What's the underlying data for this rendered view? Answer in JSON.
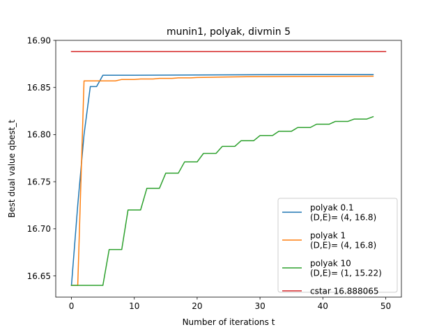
{
  "chart_data": {
    "type": "line",
    "title": "munin1, polyak, divmin 5",
    "xlabel": "Number of iterations t",
    "ylabel": "Best dual value qbest_t",
    "xlim": [
      -2.5,
      52.5
    ],
    "ylim": [
      16.6275,
      16.9
    ],
    "xticks": [
      0,
      10,
      20,
      30,
      40,
      50
    ],
    "xtick_labels": [
      "0",
      "10",
      "20",
      "30",
      "40",
      "50"
    ],
    "yticks": [
      16.65,
      16.7,
      16.75,
      16.8,
      16.85,
      16.9
    ],
    "ytick_labels": [
      "16.65",
      "16.70",
      "16.75",
      "16.80",
      "16.85",
      "16.90"
    ],
    "grid": false,
    "legend_position": "lower right",
    "series": [
      {
        "name": "polyak 0.1",
        "legend_lines": [
          "polyak 0.1",
          "(D,E)= (4, 16.8)"
        ],
        "color": "#1f77b4",
        "x": [
          0,
          1,
          2,
          3,
          4,
          5,
          10,
          20,
          30,
          40,
          48
        ],
        "y": [
          16.64,
          16.725,
          16.8,
          16.851,
          16.851,
          16.863,
          16.863,
          16.8633,
          16.8635,
          16.8636,
          16.8636
        ]
      },
      {
        "name": "polyak 1",
        "legend_lines": [
          "polyak 1",
          "(D,E)= (4, 16.8)"
        ],
        "color": "#ff7f0e",
        "x": [
          0,
          1,
          2,
          3,
          4,
          5,
          6,
          7,
          8,
          9,
          10,
          11,
          12,
          13,
          14,
          15,
          16,
          17,
          18,
          19,
          20,
          22,
          24,
          26,
          28,
          30,
          35,
          40,
          45,
          48
        ],
        "y": [
          16.64,
          16.64,
          16.857,
          16.857,
          16.857,
          16.857,
          16.857,
          16.857,
          16.8585,
          16.8585,
          16.8585,
          16.859,
          16.859,
          16.859,
          16.8597,
          16.8597,
          16.8597,
          16.8602,
          16.8602,
          16.8602,
          16.8606,
          16.8608,
          16.861,
          16.8612,
          16.8614,
          16.8615,
          16.8617,
          16.8618,
          16.8619,
          16.862
        ]
      },
      {
        "name": "polyak 10",
        "legend_lines": [
          "polyak 10",
          "(D,E)= (1, 15.22)"
        ],
        "color": "#2ca02c",
        "x": [
          0,
          1,
          2,
          3,
          4,
          5,
          6,
          7,
          8,
          9,
          10,
          11,
          12,
          13,
          14,
          15,
          16,
          17,
          18,
          19,
          20,
          21,
          22,
          23,
          24,
          25,
          26,
          27,
          28,
          29,
          30,
          31,
          32,
          33,
          34,
          35,
          36,
          37,
          38,
          39,
          40,
          41,
          42,
          43,
          44,
          45,
          46,
          47,
          48
        ],
        "y": [
          16.64,
          16.64,
          16.64,
          16.64,
          16.64,
          16.64,
          16.678,
          16.678,
          16.678,
          16.72,
          16.72,
          16.72,
          16.743,
          16.743,
          16.743,
          16.759,
          16.759,
          16.759,
          16.771,
          16.771,
          16.771,
          16.78,
          16.78,
          16.78,
          16.7875,
          16.7875,
          16.7875,
          16.7935,
          16.7935,
          16.7935,
          16.799,
          16.799,
          16.799,
          16.8035,
          16.8035,
          16.8035,
          16.8075,
          16.8075,
          16.8075,
          16.811,
          16.811,
          16.811,
          16.814,
          16.814,
          16.814,
          16.8165,
          16.8165,
          16.8165,
          16.819
        ]
      },
      {
        "name": "cstar 16.888065",
        "legend_lines": [
          "cstar 16.888065"
        ],
        "color": "#d62728",
        "x": [
          0,
          50
        ],
        "y": [
          16.888065,
          16.888065
        ]
      }
    ]
  }
}
